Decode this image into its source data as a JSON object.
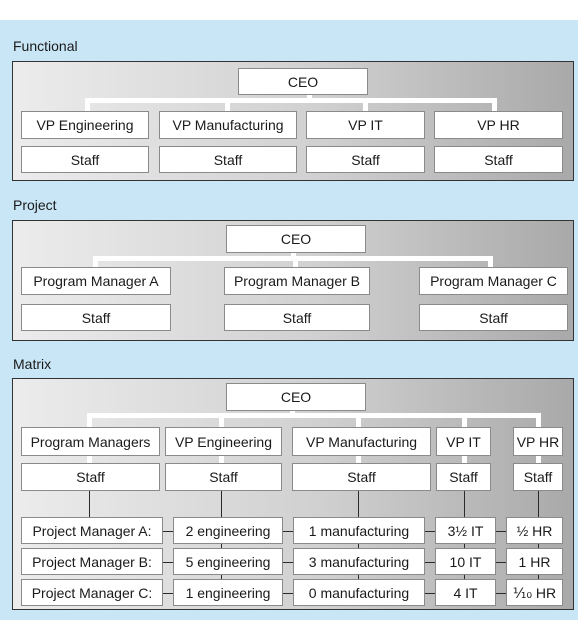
{
  "functional": {
    "title": "Functional",
    "ceo": "CEO",
    "units": [
      {
        "head": "VP Engineering",
        "staff": "Staff"
      },
      {
        "head": "VP Manufacturing",
        "staff": "Staff"
      },
      {
        "head": "VP IT",
        "staff": "Staff"
      },
      {
        "head": "VP HR",
        "staff": "Staff"
      }
    ]
  },
  "project": {
    "title": "Project",
    "ceo": "CEO",
    "units": [
      {
        "head": "Program Manager A",
        "staff": "Staff"
      },
      {
        "head": "Program Manager B",
        "staff": "Staff"
      },
      {
        "head": "Program Manager C",
        "staff": "Staff"
      }
    ]
  },
  "matrix": {
    "title": "Matrix",
    "ceo": "CEO",
    "units": [
      {
        "head": "Program Managers",
        "staff": "Staff"
      },
      {
        "head": "VP Engineering",
        "staff": "Staff"
      },
      {
        "head": "VP Manufacturing",
        "staff": "Staff"
      },
      {
        "head": "VP IT",
        "staff": "Staff"
      },
      {
        "head": "VP HR",
        "staff": "Staff"
      }
    ],
    "rows": [
      {
        "manager": "Project Manager A:",
        "engineering": "2 engineering",
        "manufacturing": "1 manufacturing",
        "it": "3½ IT",
        "hr": "½ HR"
      },
      {
        "manager": "Project Manager B:",
        "engineering": "5 engineering",
        "manufacturing": "3 manufacturing",
        "it": "10 IT",
        "hr": "1 HR"
      },
      {
        "manager": "Project Manager C:",
        "engineering": "1 engineering",
        "manufacturing": "0 manufacturing",
        "it": "4 IT",
        "hr": "⅒ HR"
      }
    ]
  }
}
